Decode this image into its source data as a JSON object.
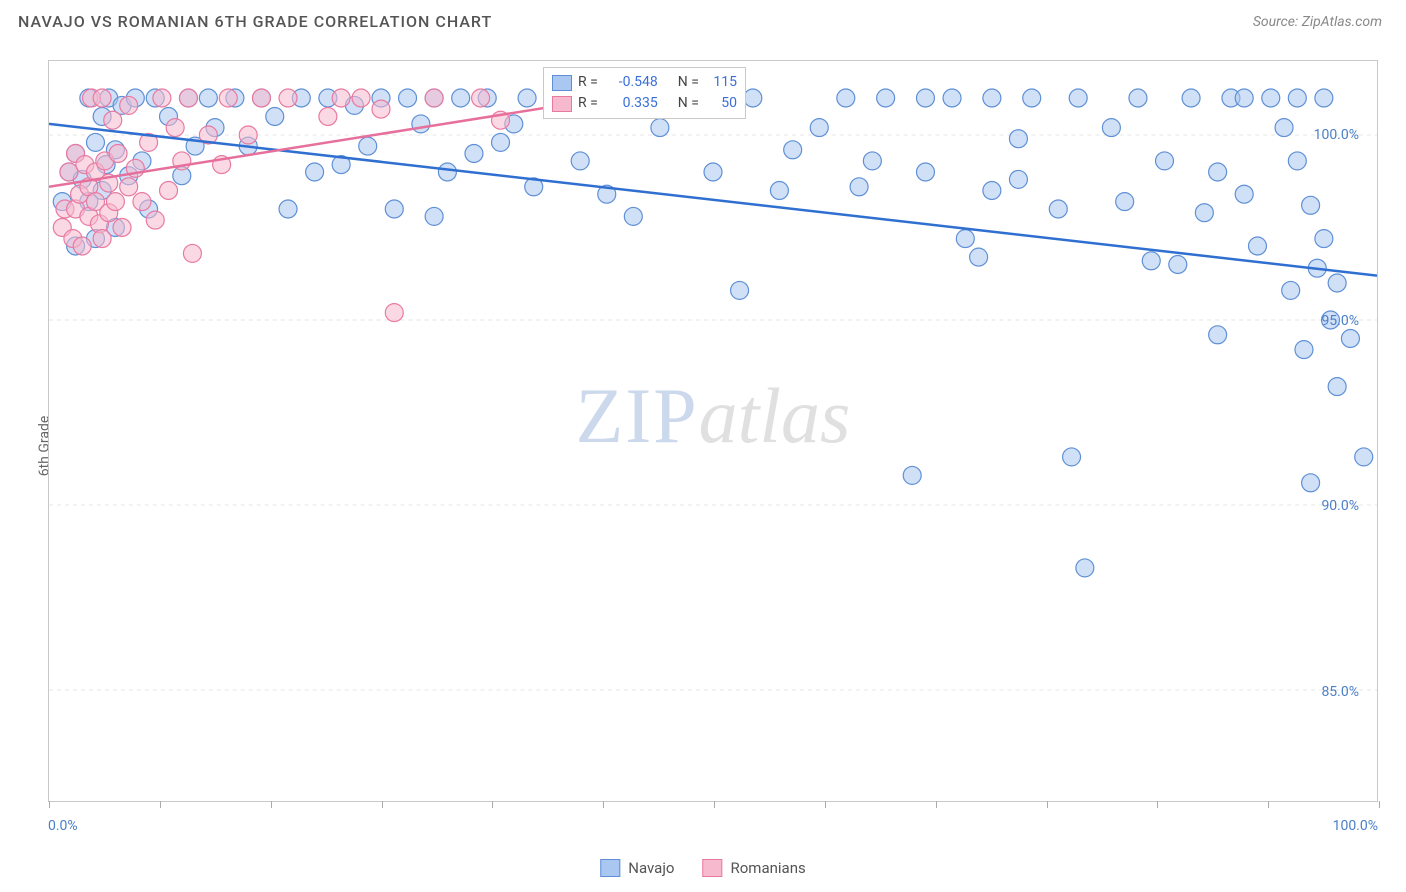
{
  "title": "NAVAJO VS ROMANIAN 6TH GRADE CORRELATION CHART",
  "source_label": "Source: ZipAtlas.com",
  "y_axis_label": "6th Grade",
  "watermark": {
    "a": "ZIP",
    "b": "atlas"
  },
  "chart": {
    "type": "scatter",
    "x_range": [
      0,
      100
    ],
    "y_range": [
      82,
      102
    ],
    "y_ticks": [
      {
        "v": 100,
        "label": "100.0%"
      },
      {
        "v": 95,
        "label": "95.0%"
      },
      {
        "v": 90,
        "label": "90.0%"
      },
      {
        "v": 85,
        "label": "85.0%"
      }
    ],
    "x_ticks_minor": [
      0,
      8.33,
      16.67,
      25,
      33.33,
      41.67,
      50,
      58.33,
      66.67,
      75,
      83.33,
      91.67,
      100
    ],
    "x_ticks_labeled": [
      {
        "v": 0,
        "label": "0.0%"
      },
      {
        "v": 100,
        "label": "100.0%"
      }
    ],
    "grid_color": "#e5e5e5",
    "background": "#ffffff",
    "marker_radius": 9,
    "marker_stroke_width": 1.2,
    "series": [
      {
        "id": "navajo",
        "label": "Navajo",
        "fill": "#a9c7f0",
        "stroke": "#5f90d6",
        "fill_opacity": 0.55,
        "R": "-0.548",
        "N": "115",
        "trend": {
          "x1": 0,
          "y1": 100.3,
          "x2": 100,
          "y2": 96.2,
          "color": "#2f6fd0",
          "width": 2.5
        },
        "points": [
          [
            1,
            98.2
          ],
          [
            1.5,
            99
          ],
          [
            2,
            97
          ],
          [
            2,
            99.5
          ],
          [
            2.5,
            98.8
          ],
          [
            3,
            101
          ],
          [
            3,
            98.2
          ],
          [
            3.5,
            99.8
          ],
          [
            3.5,
            97.2
          ],
          [
            4,
            100.5
          ],
          [
            4,
            98.5
          ],
          [
            4.3,
            99.2
          ],
          [
            4.5,
            101
          ],
          [
            5,
            97.5
          ],
          [
            5,
            99.6
          ],
          [
            5.5,
            100.8
          ],
          [
            6,
            98.9
          ],
          [
            6.5,
            101
          ],
          [
            7,
            99.3
          ],
          [
            7.5,
            98
          ],
          [
            8,
            101
          ],
          [
            9,
            100.5
          ],
          [
            10,
            98.9
          ],
          [
            10.5,
            101
          ],
          [
            11,
            99.7
          ],
          [
            12,
            101
          ],
          [
            12.5,
            100.2
          ],
          [
            14,
            101
          ],
          [
            15,
            99.7
          ],
          [
            16,
            101
          ],
          [
            17,
            100.5
          ],
          [
            18,
            98
          ],
          [
            19,
            101
          ],
          [
            20,
            99
          ],
          [
            21,
            101
          ],
          [
            22,
            99.2
          ],
          [
            23,
            100.8
          ],
          [
            24,
            99.7
          ],
          [
            25,
            101
          ],
          [
            26,
            98
          ],
          [
            27,
            101
          ],
          [
            28,
            100.3
          ],
          [
            29,
            101
          ],
          [
            29,
            97.8
          ],
          [
            30,
            99
          ],
          [
            31,
            101
          ],
          [
            32,
            99.5
          ],
          [
            33,
            101
          ],
          [
            34,
            99.8
          ],
          [
            35,
            100.3
          ],
          [
            36,
            101
          ],
          [
            36.5,
            98.6
          ],
          [
            38,
            101
          ],
          [
            40,
            99.3
          ],
          [
            41,
            101
          ],
          [
            42,
            98.4
          ],
          [
            43,
            101
          ],
          [
            44,
            97.8
          ],
          [
            46,
            100.2
          ],
          [
            48,
            101
          ],
          [
            50,
            99
          ],
          [
            52,
            95.8
          ],
          [
            53,
            101
          ],
          [
            55,
            98.5
          ],
          [
            56,
            99.6
          ],
          [
            58,
            100.2
          ],
          [
            60,
            101
          ],
          [
            61,
            98.6
          ],
          [
            62,
            99.3
          ],
          [
            63,
            101
          ],
          [
            65,
            90.8
          ],
          [
            66,
            101
          ],
          [
            66,
            99
          ],
          [
            68,
            101
          ],
          [
            69,
            97.2
          ],
          [
            70,
            96.7
          ],
          [
            71,
            98.5
          ],
          [
            71,
            101
          ],
          [
            73,
            98.8
          ],
          [
            73,
            99.9
          ],
          [
            74,
            101
          ],
          [
            76,
            98
          ],
          [
            77,
            91.3
          ],
          [
            77.5,
            101
          ],
          [
            78,
            88.3
          ],
          [
            80,
            100.2
          ],
          [
            81,
            98.2
          ],
          [
            82,
            101
          ],
          [
            83,
            96.6
          ],
          [
            84,
            99.3
          ],
          [
            85,
            96.5
          ],
          [
            86,
            101
          ],
          [
            87,
            97.9
          ],
          [
            88,
            99
          ],
          [
            88,
            94.6
          ],
          [
            89,
            101
          ],
          [
            90,
            98.4
          ],
          [
            90,
            101
          ],
          [
            91,
            97
          ],
          [
            92,
            101
          ],
          [
            93,
            100.2
          ],
          [
            93.5,
            95.8
          ],
          [
            94,
            99.3
          ],
          [
            94,
            101
          ],
          [
            94.5,
            94.2
          ],
          [
            95,
            90.6
          ],
          [
            95,
            98.1
          ],
          [
            95.5,
            96.4
          ],
          [
            96,
            101
          ],
          [
            96,
            97.2
          ],
          [
            96.5,
            95
          ],
          [
            97,
            93.2
          ],
          [
            97,
            96
          ],
          [
            98,
            94.5
          ],
          [
            99,
            91.3
          ]
        ]
      },
      {
        "id": "romanians",
        "label": "Romanians",
        "fill": "#f7b9cd",
        "stroke": "#e87aa2",
        "fill_opacity": 0.55,
        "R": "0.335",
        "N": "50",
        "trend": {
          "x1": 0,
          "y1": 98.6,
          "x2": 42,
          "y2": 101,
          "color": "#e66f9b",
          "width": 2.5
        },
        "points": [
          [
            1,
            97.5
          ],
          [
            1.2,
            98
          ],
          [
            1.5,
            99
          ],
          [
            1.8,
            97.2
          ],
          [
            2,
            99.5
          ],
          [
            2,
            98
          ],
          [
            2.3,
            98.4
          ],
          [
            2.5,
            97
          ],
          [
            2.7,
            99.2
          ],
          [
            3,
            98.6
          ],
          [
            3,
            97.8
          ],
          [
            3.2,
            101
          ],
          [
            3.5,
            98.2
          ],
          [
            3.5,
            99
          ],
          [
            3.8,
            97.6
          ],
          [
            4,
            101
          ],
          [
            4,
            97.2
          ],
          [
            4.2,
            99.3
          ],
          [
            4.5,
            98.7
          ],
          [
            4.5,
            97.9
          ],
          [
            4.8,
            100.4
          ],
          [
            5,
            98.2
          ],
          [
            5.2,
            99.5
          ],
          [
            5.5,
            97.5
          ],
          [
            6,
            98.6
          ],
          [
            6,
            100.8
          ],
          [
            6.5,
            99.1
          ],
          [
            7,
            98.2
          ],
          [
            7.5,
            99.8
          ],
          [
            8,
            97.7
          ],
          [
            8.5,
            101
          ],
          [
            9,
            98.5
          ],
          [
            9.5,
            100.2
          ],
          [
            10,
            99.3
          ],
          [
            10.5,
            101
          ],
          [
            10.8,
            96.8
          ],
          [
            12,
            100
          ],
          [
            13,
            99.2
          ],
          [
            13.5,
            101
          ],
          [
            15,
            100
          ],
          [
            16,
            101
          ],
          [
            18,
            101
          ],
          [
            21,
            100.5
          ],
          [
            22,
            101
          ],
          [
            23.5,
            101
          ],
          [
            25,
            100.7
          ],
          [
            26,
            95.2
          ],
          [
            29,
            101
          ],
          [
            32.5,
            101
          ],
          [
            34,
            100.4
          ]
        ]
      }
    ]
  },
  "stats_box": {
    "rows": [
      {
        "swatch_fill": "#a9c7f0",
        "swatch_stroke": "#5f90d6",
        "r_label": "R =",
        "r_val": "-0.548",
        "n_label": "N =",
        "n_val": "115"
      },
      {
        "swatch_fill": "#f7b9cd",
        "swatch_stroke": "#e87aa2",
        "r_label": "R =",
        "r_val": "0.335",
        "n_label": "N =",
        "n_val": "50"
      }
    ]
  }
}
